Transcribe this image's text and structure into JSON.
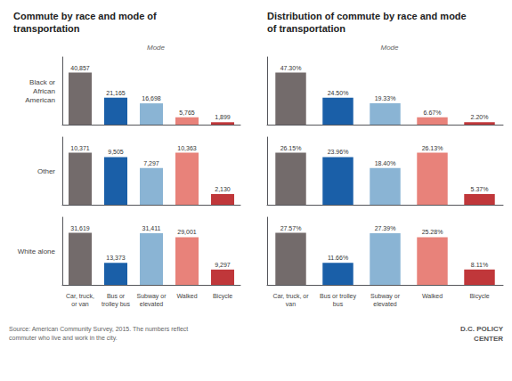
{
  "chart_data": [
    {
      "type": "bar",
      "title": "Commute by race and mode of\ntransportation",
      "subtitle": "Mode",
      "ylabel": "Black or\nAfrican\nAmerican",
      "categories": [
        null,
        null,
        null,
        null,
        null
      ],
      "values": [
        40857,
        21165,
        16698,
        5765,
        1899
      ],
      "value_labels": [
        "40,857",
        "21,165",
        "16,698",
        "5,765",
        "1,899"
      ],
      "colors": [
        "#736b6b",
        "#1a5fa8",
        "#8ab4d4",
        "#e8827a",
        "#c0373a"
      ],
      "ylim": [
        0,
        53114.1
      ],
      "tick_labels": false,
      "grid": false,
      "data_labels": true
    },
    {
      "type": "bar",
      "title": "Distribution of commute by race and mode\nof transportation",
      "subtitle": "Mode",
      "categories": [
        null,
        null,
        null,
        null,
        null
      ],
      "values": [
        47.3,
        24.5,
        19.33,
        6.67,
        2.2
      ],
      "value_labels": [
        "47.30%",
        "24.50%",
        "19.33%",
        "6.67%",
        "2.20%"
      ],
      "colors": [
        "#736b6b",
        "#1a5fa8",
        "#8ab4d4",
        "#e8827a",
        "#c0373a"
      ],
      "ylim": [
        0,
        61.49
      ],
      "tick_labels": false,
      "grid": false,
      "data_labels": true
    },
    {
      "type": "bar",
      "ylabel": "Other",
      "categories": [
        null,
        null,
        null,
        null,
        null
      ],
      "values": [
        10371,
        9505,
        7297,
        10363,
        2130
      ],
      "value_labels": [
        "10,371",
        "9,505",
        "7,297",
        "10,363",
        "2,130"
      ],
      "colors": [
        "#736b6b",
        "#1a5fa8",
        "#8ab4d4",
        "#e8827a",
        "#c0373a"
      ],
      "ylim": [
        0,
        13482.3
      ],
      "tick_labels": false,
      "grid": false,
      "data_labels": true
    },
    {
      "type": "bar",
      "categories": [
        null,
        null,
        null,
        null,
        null
      ],
      "values": [
        26.15,
        23.96,
        18.4,
        26.13,
        5.37
      ],
      "value_labels": [
        "26.15%",
        "23.96%",
        "18.40%",
        "26.13%",
        "5.37%"
      ],
      "colors": [
        "#736b6b",
        "#1a5fa8",
        "#8ab4d4",
        "#e8827a",
        "#c0373a"
      ],
      "ylim": [
        0,
        33.995
      ],
      "tick_labels": false,
      "grid": false,
      "data_labels": true
    },
    {
      "type": "bar",
      "ylabel": "White alone",
      "categories": [
        "Car, truck,\nor van",
        "Bus or\ntrolley bus",
        "Subway or\nelevated",
        "Walked",
        "Bicycle"
      ],
      "values": [
        31619,
        13373,
        31411,
        29001,
        9297
      ],
      "value_labels": [
        "31,619",
        "13,373",
        "31,411",
        "29,001",
        "9,297"
      ],
      "colors": [
        "#736b6b",
        "#1a5fa8",
        "#8ab4d4",
        "#e8827a",
        "#c0373a"
      ],
      "ylim": [
        0,
        41104.7
      ],
      "tick_labels": "x",
      "grid": false,
      "data_labels": true,
      "annotations": [
        "Source: American Community Survey, 2015. The numbers reflect\ncommuter who live and work in the city."
      ]
    },
    {
      "type": "bar",
      "categories": [
        "Car, truck, or\nvan",
        "Bus or trolley\nbus",
        "Subway or\nelevated",
        "Walked",
        "Bicycle"
      ],
      "values": [
        27.57,
        11.66,
        27.39,
        25.28,
        8.11
      ],
      "value_labels": [
        "27.57%",
        "11.66%",
        "27.39%",
        "25.28%",
        "8.11%"
      ],
      "colors": [
        "#736b6b",
        "#1a5fa8",
        "#8ab4d4",
        "#e8827a",
        "#c0373a"
      ],
      "ylim": [
        0,
        35.841
      ],
      "tick_labels": "x",
      "grid": false,
      "data_labels": true,
      "annotations": [
        "D.C. POLICY\nCENTER"
      ]
    }
  ]
}
